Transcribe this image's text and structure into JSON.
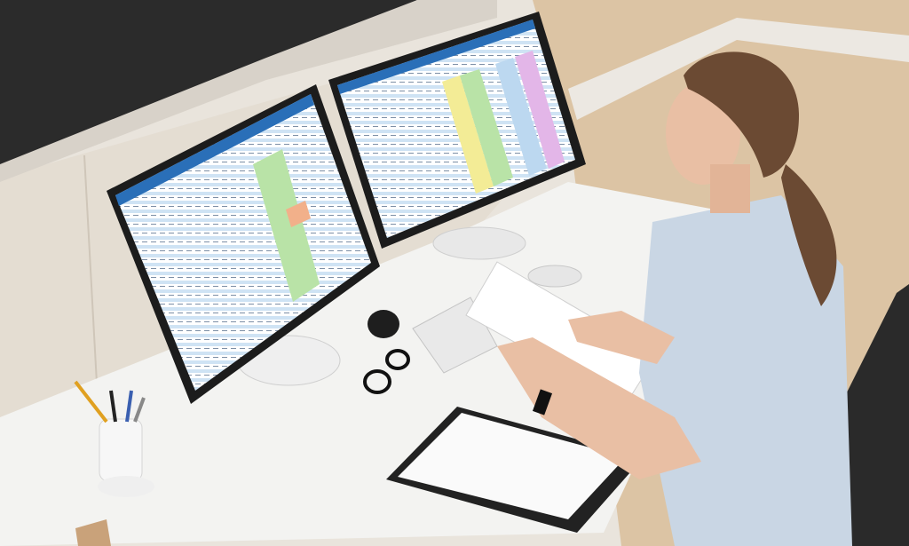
{
  "scene": {
    "subject": "person-at-dual-monitor-desk",
    "colors": {
      "wall": "#e9e4dc",
      "countertop": "#2b2b2b",
      "cabinet": "#e4ddd2",
      "floor": "#dcc4a4",
      "desk": "#f3f3f1",
      "monitor_frame": "#1c1c1c",
      "spreadsheet_header": "#2a6fb8",
      "spreadsheet_row_alt": "#cfe3f4",
      "highlight_green": "#b9e3a7",
      "highlight_yellow": "#f3ec96",
      "highlight_pink": "#e3b6e8",
      "highlight_orange": "#f2b08a",
      "scrub_top": "#c9d6e4",
      "hair": "#6b4a33",
      "skin": "#e9bfa4",
      "chair": "#2a2a2a"
    }
  }
}
